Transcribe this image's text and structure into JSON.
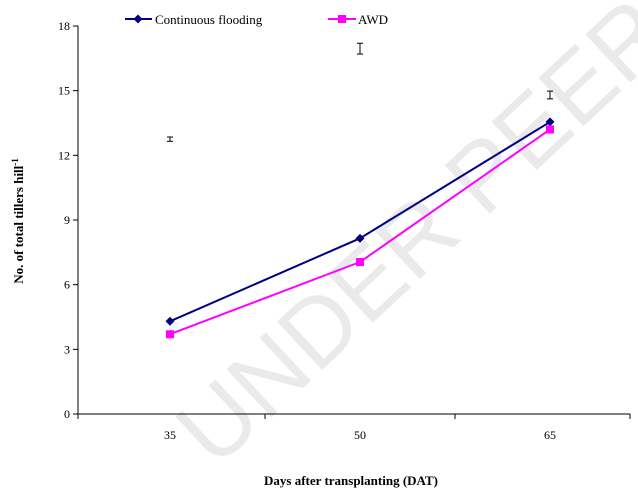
{
  "watermark": "UNDER PEER REVIEW",
  "chart_data": {
    "type": "line",
    "categories": [
      "35",
      "50",
      "65"
    ],
    "series": [
      {
        "name": "Continuous flooding",
        "values": [
          4.3,
          8.15,
          13.55
        ],
        "color": "#00007f",
        "marker": "diamond"
      },
      {
        "name": "AWD",
        "values": [
          3.7,
          7.05,
          13.2
        ],
        "color": "#ff00ff",
        "marker": "square"
      }
    ],
    "error_bars": [
      {
        "category": "35",
        "center": 12.75,
        "halfwidth": 0.1
      },
      {
        "category": "50",
        "center": 16.95,
        "halfwidth": 0.25
      },
      {
        "category": "65",
        "center": 14.8,
        "halfwidth": 0.18
      }
    ],
    "xlabel": "Days after transplanting (DAT)",
    "ylabel": "No. of total tillers hill",
    "ylabel_superscript": "-1",
    "ylim": [
      0,
      18
    ],
    "yticks": [
      0,
      3,
      6,
      9,
      12,
      15,
      18
    ],
    "legend_position": "top",
    "grid": false
  }
}
